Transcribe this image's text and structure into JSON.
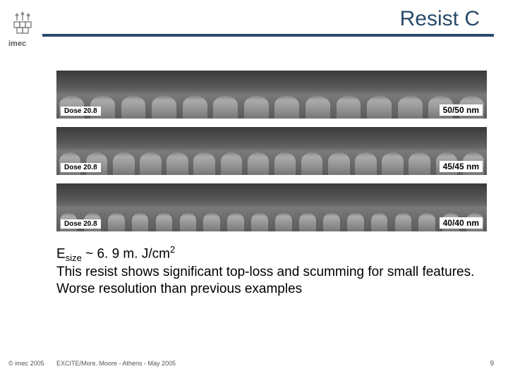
{
  "logo_text": "imec",
  "title": "Resist C",
  "sem_rows": [
    {
      "dose": "Dose 20.8",
      "size": "50/50 nm",
      "teeth": 14
    },
    {
      "dose": "Dose 20.8",
      "size": "45/45 nm",
      "teeth": 16
    },
    {
      "dose": "Dose 20.8",
      "size": "40/40 nm",
      "teeth": 18
    }
  ],
  "body": {
    "line1_prefix": "E",
    "line1_sub": "size",
    "line1_mid": " ~ 6. 9 m. J/cm",
    "line1_sup": "2",
    "line2": "This resist shows significant top-loss and scumming for small features. Worse resolution than previous examples"
  },
  "footer": {
    "copyright": "© imec 2005",
    "text": "EXCITE/More. Moore - Athens - May 2005",
    "page": "9"
  },
  "colors": {
    "title": "#2a4a6a",
    "underline": "#2a4a6a"
  }
}
